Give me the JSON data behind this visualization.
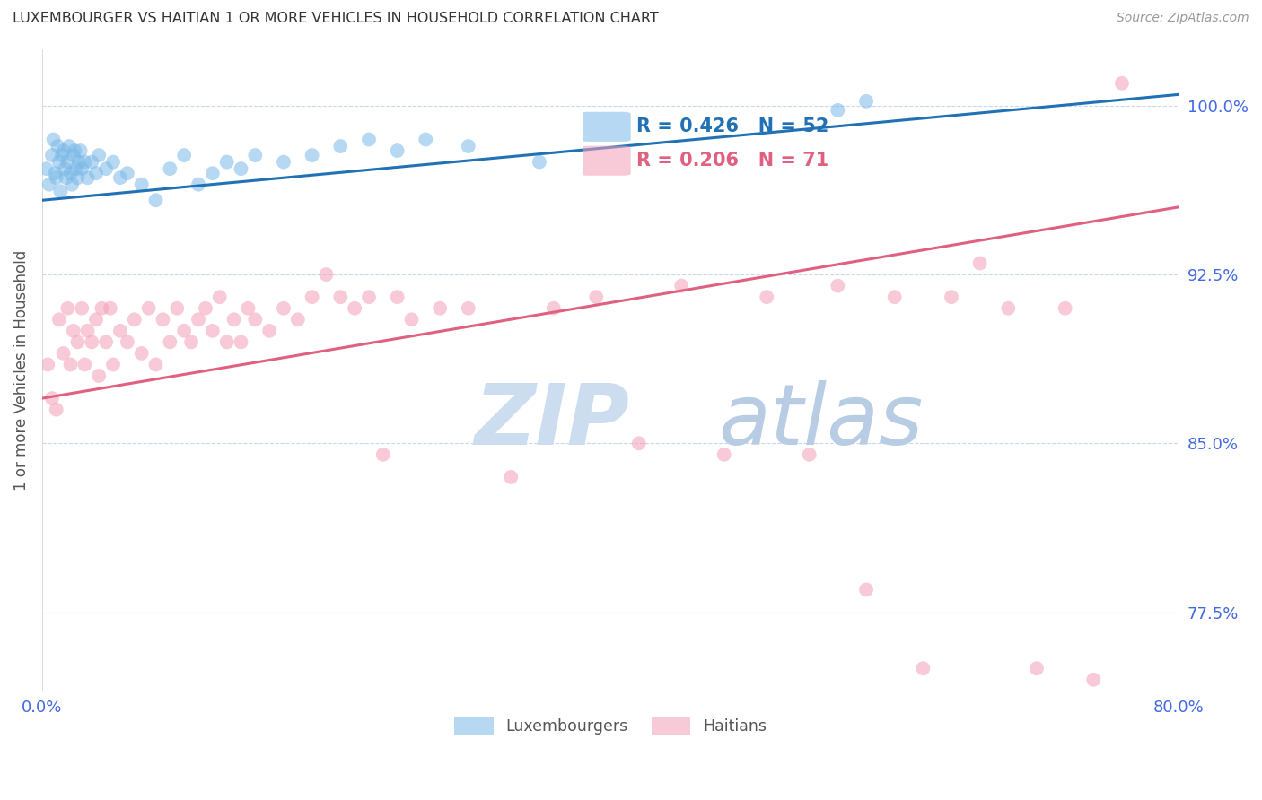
{
  "title": "LUXEMBOURGER VS HAITIAN 1 OR MORE VEHICLES IN HOUSEHOLD CORRELATION CHART",
  "source": "Source: ZipAtlas.com",
  "ylabel": "1 or more Vehicles in Household",
  "x_min": 0.0,
  "x_max": 80.0,
  "y_min": 74.0,
  "y_max": 102.5,
  "x_ticks": [
    0.0,
    10.0,
    20.0,
    30.0,
    40.0,
    50.0,
    60.0,
    70.0,
    80.0
  ],
  "x_tick_labels": [
    "0.0%",
    "",
    "",
    "",
    "",
    "",
    "",
    "",
    "80.0%"
  ],
  "y_ticks": [
    77.5,
    85.0,
    92.5,
    100.0
  ],
  "y_tick_labels": [
    "77.5%",
    "85.0%",
    "92.5%",
    "100.0%"
  ],
  "blue_label": "Luxembourgers",
  "pink_label": "Haitians",
  "blue_R": "R = 0.426",
  "blue_N": "N = 52",
  "pink_R": "R = 0.206",
  "pink_N": "N = 71",
  "blue_color": "#7ab8e8",
  "pink_color": "#f4a0b8",
  "blue_line_color": "#2171b5",
  "pink_line_color": "#e06080",
  "grid_color": "#c8d8ee",
  "title_color": "#333333",
  "axis_label_color": "#555555",
  "tick_label_color": "#4169E1",
  "source_color": "#999999",
  "watermark_zip_color": "#ccddf0",
  "watermark_atlas_color": "#b8cce4",
  "blue_line_x0": 0.0,
  "blue_line_y0": 95.8,
  "blue_line_x1": 80.0,
  "blue_line_y1": 100.5,
  "pink_line_x0": 0.0,
  "pink_line_y0": 87.0,
  "pink_line_x1": 80.0,
  "pink_line_y1": 95.5,
  "blue_x": [
    0.3,
    0.5,
    0.7,
    0.8,
    0.9,
    1.0,
    1.1,
    1.2,
    1.3,
    1.4,
    1.5,
    1.6,
    1.7,
    1.8,
    1.9,
    2.0,
    2.1,
    2.2,
    2.3,
    2.4,
    2.5,
    2.6,
    2.7,
    2.8,
    3.0,
    3.2,
    3.5,
    3.8,
    4.0,
    4.5,
    5.0,
    5.5,
    6.0,
    7.0,
    8.0,
    9.0,
    10.0,
    11.0,
    12.0,
    13.0,
    14.0,
    15.0,
    17.0,
    19.0,
    21.0,
    23.0,
    25.0,
    27.0,
    30.0,
    35.0,
    56.0,
    58.0
  ],
  "blue_y": [
    97.2,
    96.5,
    97.8,
    98.5,
    97.0,
    96.8,
    98.2,
    97.5,
    96.2,
    97.8,
    98.0,
    97.2,
    96.8,
    97.5,
    98.2,
    97.0,
    96.5,
    97.8,
    98.0,
    97.2,
    96.8,
    97.5,
    98.0,
    97.2,
    97.5,
    96.8,
    97.5,
    97.0,
    97.8,
    97.2,
    97.5,
    96.8,
    97.0,
    96.5,
    95.8,
    97.2,
    97.8,
    96.5,
    97.0,
    97.5,
    97.2,
    97.8,
    97.5,
    97.8,
    98.2,
    98.5,
    98.0,
    98.5,
    98.2,
    97.5,
    99.8,
    100.2
  ],
  "pink_x": [
    0.4,
    0.7,
    1.0,
    1.2,
    1.5,
    1.8,
    2.0,
    2.2,
    2.5,
    2.8,
    3.0,
    3.2,
    3.5,
    3.8,
    4.0,
    4.2,
    4.5,
    4.8,
    5.0,
    5.5,
    6.0,
    6.5,
    7.0,
    7.5,
    8.0,
    8.5,
    9.0,
    9.5,
    10.0,
    10.5,
    11.0,
    11.5,
    12.0,
    12.5,
    13.0,
    13.5,
    14.0,
    14.5,
    15.0,
    16.0,
    17.0,
    18.0,
    19.0,
    20.0,
    21.0,
    22.0,
    23.0,
    24.0,
    25.0,
    26.0,
    28.0,
    30.0,
    33.0,
    36.0,
    39.0,
    42.0,
    45.0,
    48.0,
    51.0,
    54.0,
    56.0,
    58.0,
    60.0,
    62.0,
    64.0,
    66.0,
    68.0,
    70.0,
    72.0,
    74.0,
    76.0
  ],
  "pink_y": [
    88.5,
    87.0,
    86.5,
    90.5,
    89.0,
    91.0,
    88.5,
    90.0,
    89.5,
    91.0,
    88.5,
    90.0,
    89.5,
    90.5,
    88.0,
    91.0,
    89.5,
    91.0,
    88.5,
    90.0,
    89.5,
    90.5,
    89.0,
    91.0,
    88.5,
    90.5,
    89.5,
    91.0,
    90.0,
    89.5,
    90.5,
    91.0,
    90.0,
    91.5,
    89.5,
    90.5,
    89.5,
    91.0,
    90.5,
    90.0,
    91.0,
    90.5,
    91.5,
    92.5,
    91.5,
    91.0,
    91.5,
    84.5,
    91.5,
    90.5,
    91.0,
    91.0,
    83.5,
    91.0,
    91.5,
    85.0,
    92.0,
    84.5,
    91.5,
    84.5,
    92.0,
    78.5,
    91.5,
    75.0,
    91.5,
    93.0,
    91.0,
    75.0,
    91.0,
    74.5,
    101.0
  ]
}
